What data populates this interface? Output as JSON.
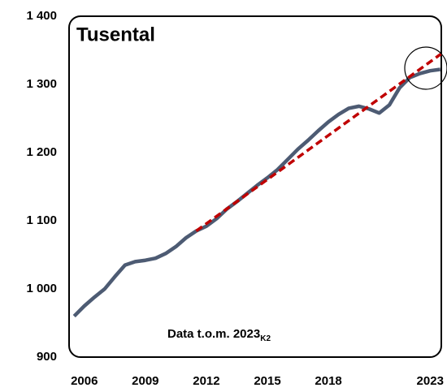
{
  "chart_data": {
    "type": "line",
    "title": "Tusental",
    "annotation": "Data t.o.m. 2023",
    "annotation_sub": "K2",
    "x": [
      2005.5,
      2006,
      2006.5,
      2007,
      2007.5,
      2008,
      2008.5,
      2009,
      2009.5,
      2010,
      2010.5,
      2011,
      2011.5,
      2012,
      2012.5,
      2013,
      2013.5,
      2014,
      2014.5,
      2015,
      2015.5,
      2016,
      2016.5,
      2017,
      2017.5,
      2018,
      2018.5,
      2019,
      2019.5,
      2020,
      2020.5,
      2021,
      2021.5,
      2022,
      2022.5,
      2023,
      2023.5
    ],
    "series": [
      {
        "color": "#4d5b73",
        "values": [
          960,
          975,
          988,
          1000,
          1018,
          1035,
          1040,
          1042,
          1045,
          1052,
          1062,
          1075,
          1085,
          1092,
          1103,
          1117,
          1128,
          1140,
          1152,
          1163,
          1175,
          1190,
          1205,
          1218,
          1232,
          1245,
          1256,
          1265,
          1268,
          1264,
          1258,
          1270,
          1295,
          1310,
          1316,
          1320,
          1322
        ]
      }
    ],
    "trend": {
      "color": "#c00000",
      "x": [
        2011.5,
        2023.55
      ],
      "values": [
        1085,
        1345
      ]
    },
    "xlim": [
      2005.25,
      2023.55
    ],
    "xticks": [
      2006,
      2009,
      2012,
      2015,
      2018,
      2023
    ],
    "ylim": [
      900,
      1400
    ],
    "yticks": [
      900,
      {
        "value": 1000,
        "label": "1 000"
      },
      {
        "value": 1100,
        "label": "1 100"
      },
      {
        "value": 1200,
        "label": "1 200"
      },
      {
        "value": 1300,
        "label": "1 300"
      },
      {
        "value": 1400,
        "label": "1 400"
      }
    ]
  }
}
